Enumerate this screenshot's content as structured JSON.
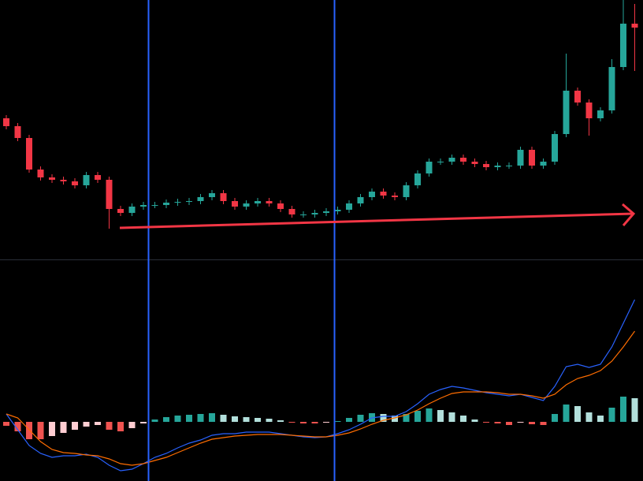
{
  "chart_data": [
    {
      "type": "candlestick",
      "ylim": [
        0,
        330
      ],
      "up_color": "#26a69a",
      "down_color": "#f23645",
      "open": [
        180,
        170,
        155,
        115,
        105,
        102,
        100,
        95,
        108,
        102,
        65,
        60,
        68,
        70,
        70,
        73,
        74,
        75,
        80,
        85,
        75,
        68,
        72,
        75,
        72,
        65,
        58,
        58,
        60,
        62,
        64,
        72,
        80,
        87,
        82,
        80,
        95,
        110,
        125,
        125,
        130,
        125,
        122,
        118,
        120,
        120,
        140,
        120,
        125,
        160,
        215,
        200,
        180,
        190,
        245,
        300
      ],
      "high": [
        184,
        174,
        159,
        119,
        109,
        106,
        104,
        112,
        112,
        106,
        69,
        72,
        74,
        74,
        77,
        78,
        79,
        84,
        89,
        89,
        79,
        76,
        79,
        79,
        76,
        69,
        62,
        64,
        66,
        68,
        76,
        84,
        91,
        91,
        86,
        99,
        114,
        129,
        129,
        134,
        134,
        129,
        126,
        124,
        124,
        144,
        144,
        129,
        164,
        262,
        219,
        204,
        194,
        255,
        330,
        325
      ],
      "low": [
        166,
        151,
        111,
        101,
        98,
        96,
        91,
        91,
        98,
        40,
        56,
        56,
        64,
        66,
        66,
        69,
        70,
        71,
        76,
        71,
        64,
        64,
        68,
        68,
        61,
        54,
        54,
        54,
        56,
        58,
        60,
        68,
        76,
        78,
        76,
        76,
        91,
        106,
        121,
        121,
        121,
        118,
        114,
        114,
        116,
        116,
        116,
        116,
        121,
        156,
        196,
        158,
        176,
        186,
        241,
        240
      ],
      "close": [
        170,
        155,
        115,
        105,
        102,
        100,
        95,
        108,
        102,
        65,
        60,
        68,
        70,
        70,
        73,
        74,
        75,
        80,
        85,
        75,
        68,
        72,
        75,
        72,
        65,
        58,
        58,
        60,
        62,
        64,
        72,
        80,
        87,
        82,
        80,
        95,
        110,
        125,
        125,
        130,
        125,
        122,
        118,
        120,
        120,
        140,
        120,
        125,
        160,
        215,
        200,
        180,
        190,
        245,
        300,
        295
      ]
    },
    {
      "type": "macd",
      "ylim": [
        -75,
        205
      ],
      "up_color": "#26a69a",
      "up_fade_color": "#b2dfdb",
      "down_color": "#ef5350",
      "down_fade_color": "#ffcdd2",
      "values": [
        -5,
        -12,
        -22,
        -22,
        -18,
        -14,
        -10,
        -6,
        -4,
        -10,
        -12,
        -8,
        -2,
        3,
        6,
        8,
        9,
        10,
        11,
        9,
        7,
        6,
        5,
        4,
        2,
        -1,
        -2,
        -2,
        -1,
        1,
        5,
        9,
        11,
        10,
        8,
        10,
        14,
        17,
        15,
        12,
        8,
        3,
        -1,
        -2,
        -4,
        -1,
        -3,
        -4,
        10,
        22,
        20,
        12,
        8,
        18,
        32,
        30
      ],
      "lines": [
        {
          "color": "#2962ff",
          "values": [
            10,
            -10,
            -30,
            -40,
            -45,
            -43,
            -43,
            -41,
            -45,
            -55,
            -62,
            -60,
            -53,
            -45,
            -40,
            -33,
            -27,
            -23,
            -17,
            -15,
            -15,
            -13,
            -13,
            -13,
            -15,
            -17,
            -19,
            -20,
            -19,
            -15,
            -10,
            -3,
            5,
            7,
            7,
            13,
            23,
            35,
            41,
            45,
            43,
            40,
            37,
            35,
            33,
            35,
            31,
            27,
            45,
            70,
            73,
            69,
            73,
            95,
            125,
            155
          ]
        },
        {
          "color": "#ff6d00",
          "values": [
            10,
            5,
            -10,
            -25,
            -35,
            -39,
            -40,
            -42,
            -43,
            -47,
            -53,
            -55,
            -53,
            -49,
            -45,
            -39,
            -33,
            -27,
            -22,
            -20,
            -18,
            -17,
            -16,
            -16,
            -16,
            -17,
            -18,
            -19,
            -19,
            -17,
            -14,
            -9,
            -3,
            2,
            5,
            9,
            15,
            23,
            30,
            36,
            38,
            38,
            38,
            37,
            35,
            35,
            33,
            30,
            35,
            47,
            55,
            59,
            65,
            77,
            95,
            115
          ]
        }
      ]
    }
  ]
}
